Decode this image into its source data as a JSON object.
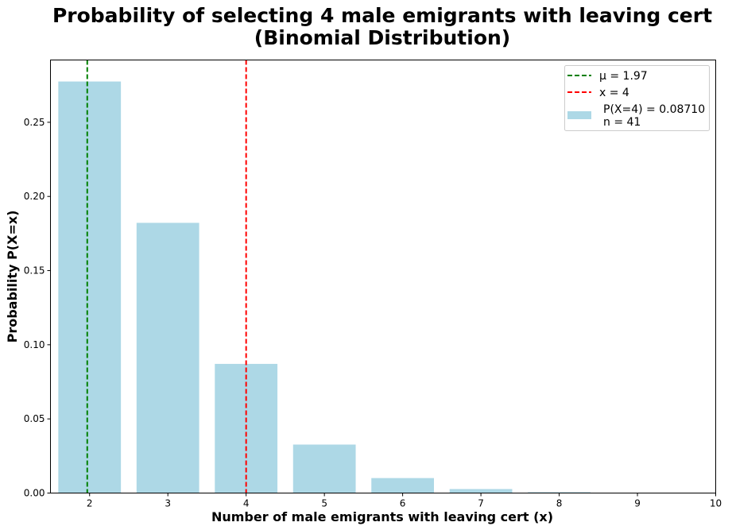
{
  "chart_data": {
    "type": "bar",
    "title_line1": "Probability of selecting 4 male emigrants with leaving cert",
    "title_line2": "(Binomial Distribution)",
    "xlabel": "Number of male emigrants with leaving cert (x)",
    "ylabel": "Probability  P(X=x)",
    "x": [
      2,
      3,
      4,
      5,
      6,
      7,
      8,
      9,
      10
    ],
    "values": [
      0.2775,
      0.1822,
      0.0871,
      0.0327,
      0.0101,
      0.0027,
      0.0006,
      0.0001,
      0.0
    ],
    "bar_color": "#add8e6",
    "xlim": [
      1.5,
      10
    ],
    "ylim": [
      0,
      0.292
    ],
    "xticks": [
      "2",
      "3",
      "4",
      "5",
      "6",
      "7",
      "8",
      "9",
      "10"
    ],
    "yticks": [
      0.0,
      0.05,
      0.1,
      0.15,
      0.2,
      0.25
    ],
    "ytick_labels": [
      "0.00",
      "0.05",
      "0.10",
      "0.15",
      "0.20",
      "0.25"
    ],
    "mean_line": {
      "x": 1.97,
      "color": "#008000",
      "label": "μ  = 1.97"
    },
    "x_line": {
      "x": 4,
      "color": "#ff0000",
      "label": "x = 4"
    },
    "bar_legend_line1": "P(X=4) = 0.08710",
    "bar_legend_line2": "n = 41",
    "legend_position": "top-right",
    "grid": false
  }
}
